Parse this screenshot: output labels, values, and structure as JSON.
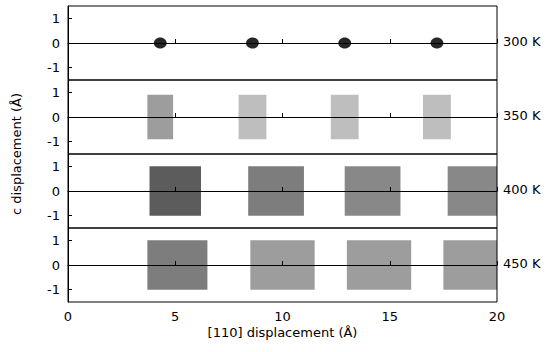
{
  "chart_data": {
    "type": "scatter",
    "x_label": "[110] displacement (Å)",
    "y_label": "c displacement (Å)",
    "xlim": [
      0,
      20
    ],
    "xticks": [
      0,
      5,
      10,
      15,
      20
    ],
    "ylim": [
      -1.5,
      1.5
    ],
    "yticks": [
      -1,
      0,
      1
    ],
    "color": "#000000",
    "panels": [
      {
        "label": "300 K",
        "marker": "circle",
        "x": [
          4.3,
          8.6,
          12.9,
          17.2
        ],
        "y": [
          0,
          0,
          0,
          0
        ],
        "width": [
          0.6,
          0.6,
          0.6,
          0.6
        ],
        "height": [
          0.45,
          0.45,
          0.45,
          0.45
        ],
        "density": [
          1.0,
          1.0,
          1.0,
          1.0
        ]
      },
      {
        "label": "350 K",
        "marker": "square",
        "x": [
          4.3,
          8.6,
          12.9,
          17.2
        ],
        "y": [
          0,
          0,
          0,
          0
        ],
        "width": [
          1.2,
          1.3,
          1.3,
          1.3
        ],
        "height": [
          1.8,
          1.8,
          1.8,
          1.8
        ],
        "density": [
          0.45,
          0.3,
          0.3,
          0.3
        ]
      },
      {
        "label": "400 K",
        "marker": "square",
        "x": [
          5.0,
          9.7,
          14.2,
          19.0
        ],
        "y": [
          0,
          0,
          0,
          0
        ],
        "width": [
          2.4,
          2.6,
          2.6,
          2.6
        ],
        "height": [
          2.0,
          2.0,
          2.0,
          2.0
        ],
        "density": [
          0.75,
          0.6,
          0.55,
          0.55
        ]
      },
      {
        "label": "450 K",
        "marker": "square",
        "x": [
          5.1,
          10.0,
          14.5,
          19.0
        ],
        "y": [
          0,
          0,
          0,
          0
        ],
        "width": [
          2.8,
          3.0,
          3.0,
          3.0
        ],
        "height": [
          2.0,
          2.0,
          2.0,
          2.0
        ],
        "density": [
          0.6,
          0.45,
          0.45,
          0.45
        ]
      }
    ]
  }
}
